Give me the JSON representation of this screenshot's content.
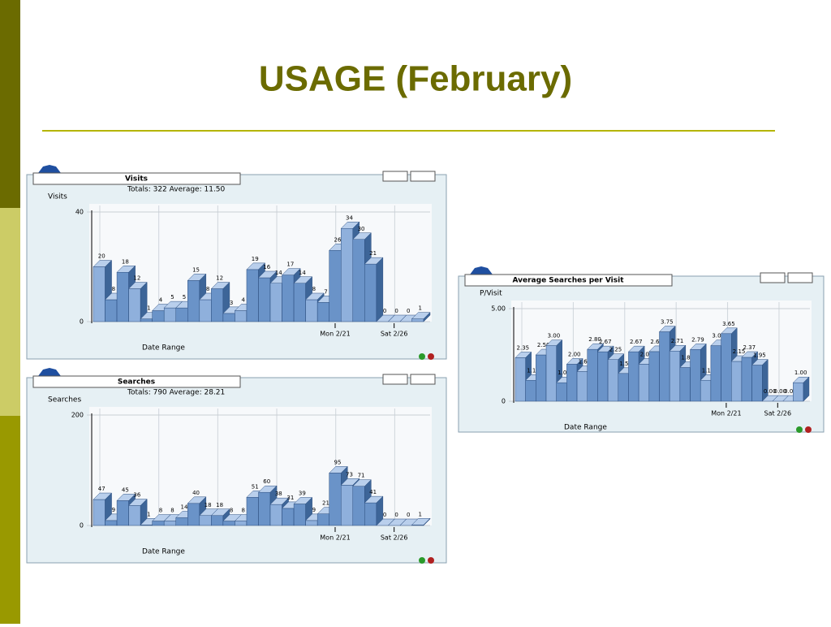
{
  "title": "USAGE (February)",
  "chart_data": [
    {
      "type": "bar",
      "title": "Visits",
      "subtitle": "Totals: 322   Average: 11.50",
      "ylabel": "Visits",
      "xlabel": "Date Range",
      "categories": [
        null,
        null,
        null,
        null,
        null,
        null,
        null,
        null,
        null,
        null,
        null,
        null,
        null,
        null,
        null,
        null,
        null,
        null,
        null,
        null,
        "Mon 2/21",
        null,
        null,
        null,
        null,
        "Sat 2/26",
        null,
        null
      ],
      "values": [
        20,
        8,
        18,
        12,
        1,
        4,
        5,
        5,
        15,
        8,
        12,
        3,
        4,
        19,
        16,
        14,
        17,
        14,
        8,
        7,
        26,
        34,
        30,
        21,
        0,
        0,
        0,
        1
      ],
      "ylim": [
        0,
        40
      ],
      "yticks": [
        0,
        40
      ],
      "color": "#6a93c8"
    },
    {
      "type": "bar",
      "title": "Searches",
      "subtitle": "Totals: 790   Average: 28.21",
      "ylabel": "Searches",
      "xlabel": "Date Range",
      "categories": [
        null,
        null,
        null,
        null,
        null,
        null,
        null,
        null,
        null,
        null,
        null,
        null,
        null,
        null,
        null,
        null,
        null,
        null,
        null,
        null,
        "Mon 2/21",
        null,
        null,
        null,
        null,
        "Sat 2/26",
        null,
        null
      ],
      "values": [
        47,
        9,
        45,
        36,
        1,
        8,
        8,
        14,
        40,
        18,
        18,
        8,
        8,
        51,
        60,
        38,
        31,
        39,
        9,
        21,
        95,
        73,
        71,
        41,
        0,
        0,
        0,
        1
      ],
      "ylim": [
        0,
        200
      ],
      "yticks": [
        0,
        200
      ],
      "color": "#6a93c8"
    },
    {
      "type": "bar",
      "title": "Average Searches per Visit",
      "ylabel": "P/Visit",
      "xlabel": "Date Range",
      "categories": [
        null,
        null,
        null,
        null,
        null,
        null,
        null,
        null,
        null,
        null,
        null,
        null,
        null,
        null,
        null,
        null,
        null,
        null,
        null,
        null,
        "Mon 2/21",
        null,
        null,
        null,
        null,
        "Sat 2/26",
        null,
        null
      ],
      "values": [
        2.35,
        1.13,
        2.5,
        3,
        1,
        2,
        1.6,
        2.8,
        2.67,
        2.25,
        1.5,
        2.67,
        2,
        2.68,
        3.75,
        2.71,
        1.82,
        2.79,
        1.13,
        3,
        3.65,
        2.15,
        2.37,
        1.95,
        0,
        0,
        0,
        1
      ],
      "value_labels": [
        "2.35",
        "1.13",
        "2.50",
        "3.00",
        "1.00",
        "2.00",
        "1.60",
        "2.80",
        "2.67",
        "2.25",
        "1.50",
        "2.67",
        "2.00",
        "2.68",
        "3.75",
        "2.71",
        "1.82",
        "2.79",
        "1.13",
        "3.00",
        "3.65",
        "2.15",
        "2.37",
        "1.95",
        "0.00",
        "0.00",
        "0.00",
        "1.00"
      ],
      "ylim": [
        0,
        5
      ],
      "yticks": [
        0,
        {
          "value": 5,
          "label": "5.00"
        }
      ],
      "color": "#6a93c8"
    }
  ]
}
